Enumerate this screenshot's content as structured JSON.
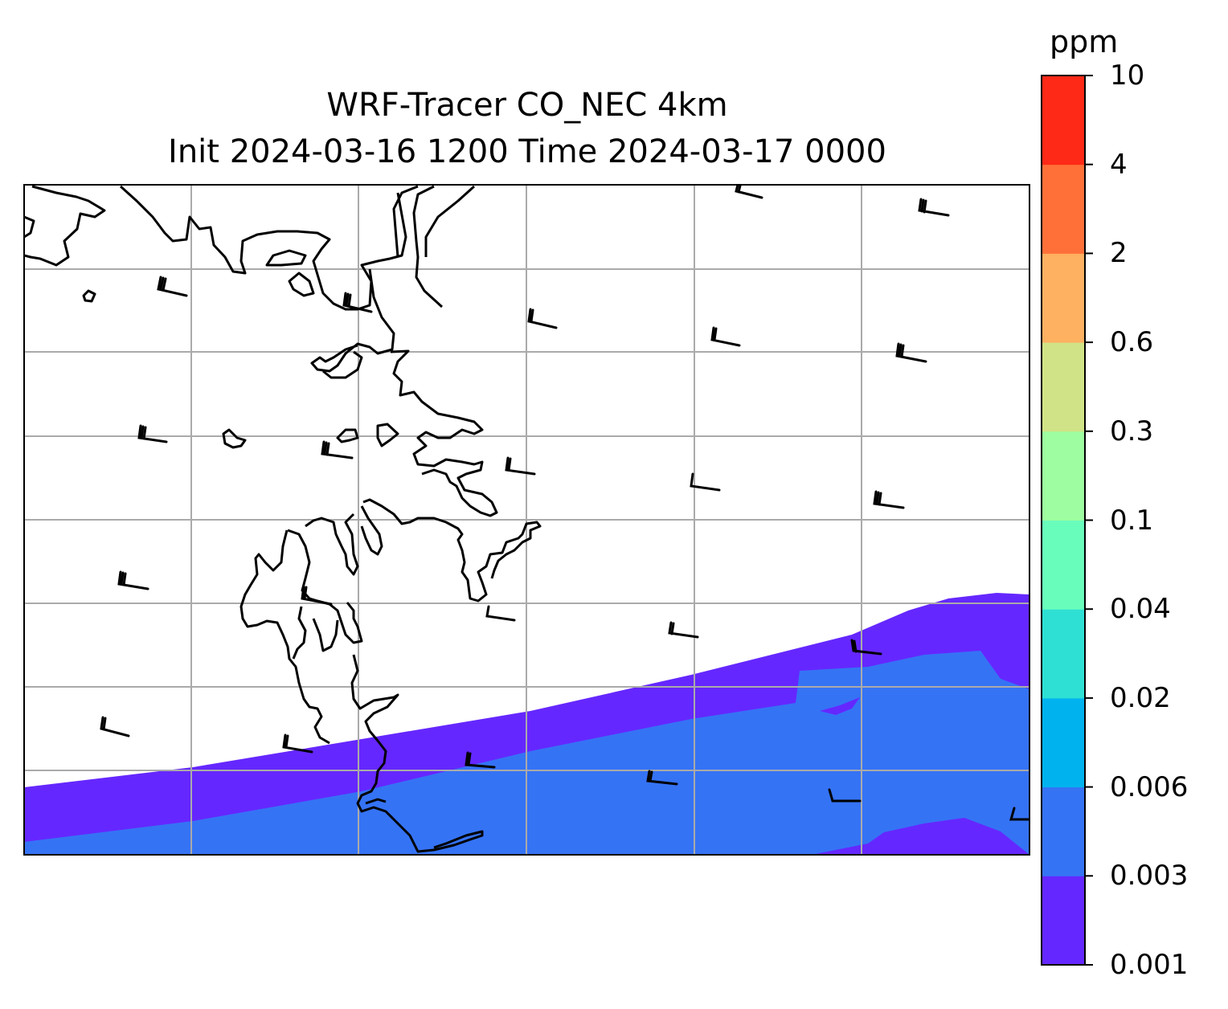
{
  "title": "WRF-Tracer CO_NEC 4km",
  "subtitle": "Init 2024-03-16 1200 Time 2024-03-17 0000",
  "colorbar": {
    "unit": "ppm",
    "ticks": [
      "0.001",
      "0.003",
      "0.006",
      "0.02",
      "0.04",
      "0.1",
      "0.3",
      "0.6",
      "2",
      "4",
      "10"
    ],
    "colors": [
      "#6527ff",
      "#3573f5",
      "#00b3ee",
      "#2ee0d4",
      "#69fdbc",
      "#9dfda0",
      "#d0e386",
      "#feb161",
      "#ff7039",
      "#fe2917"
    ]
  },
  "map": {
    "field_levels": [
      {
        "range": "0.001-0.003",
        "color": "#6527ff"
      },
      {
        "range": "0.003-0.006",
        "color": "#3573f5"
      }
    ],
    "gridline_color": "#aaaaaa",
    "coastline_color": "#000000",
    "wind_barbs": "black"
  }
}
